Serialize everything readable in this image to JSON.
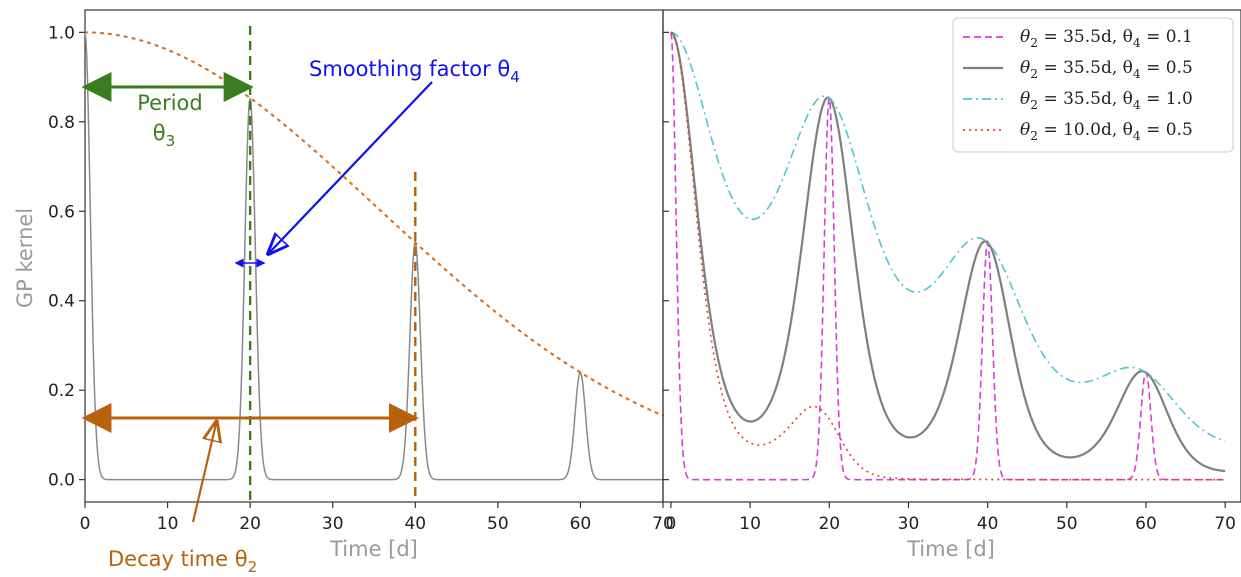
{
  "chart_data": [
    {
      "type": "line",
      "panel": "left",
      "ylabel": "GP kernel",
      "xlabel": "Time [d]",
      "xlim": [
        0,
        70
      ],
      "ylim": [
        -0.05,
        1.05
      ],
      "xticks": [
        "0",
        "10",
        "20",
        "30",
        "40",
        "50",
        "60",
        "70"
      ],
      "yticks": [
        "0.0",
        "0.2",
        "0.4",
        "0.6",
        "0.8",
        "1.0"
      ],
      "series": [
        {
          "style": "solid",
          "color": "#8a8a8a",
          "period": 20,
          "decay": 35.5,
          "smoothing": 0.1,
          "peaks": [
            {
              "x": 0,
              "y": 1.0
            },
            {
              "x": 20,
              "y": 0.85
            },
            {
              "x": 40,
              "y": 0.52
            },
            {
              "x": 60,
              "y": 0.23
            }
          ]
        },
        {
          "style": "dotted",
          "color": "#d4752a",
          "decay": 35.5,
          "x": [
            0,
            10,
            20,
            30,
            40,
            50,
            60,
            70
          ],
          "y": [
            1.0,
            0.96,
            0.85,
            0.7,
            0.52,
            0.37,
            0.23,
            0.14
          ]
        }
      ],
      "markers": {
        "period_line_x": 20,
        "decay_line_x": 40
      },
      "annotations": {
        "period": "Period",
        "period_symbol": "θ",
        "period_sub": "3",
        "smoothing": "Smoothing factor θ",
        "smoothing_sub": "4",
        "decay": "Decay time θ",
        "decay_sub": "2"
      },
      "colors": {
        "period": "#3a7d1e",
        "smoothing": "#1010f0",
        "decay": "#b8620e"
      }
    },
    {
      "type": "line",
      "panel": "right",
      "xlabel": "Time [d]",
      "xlim": [
        -1,
        72
      ],
      "ylim": [
        -0.05,
        1.05
      ],
      "xticks": [
        "0",
        "10",
        "20",
        "30",
        "40",
        "50",
        "60",
        "70"
      ],
      "legend_position": "top-right",
      "series": [
        {
          "name_p1": "θ",
          "name_s1": "2",
          "name_p2": " = 35.5d, θ",
          "name_s2": "4",
          "name_p3": " = 0.1",
          "theta2": 35.5,
          "theta4": 0.1,
          "style": "dashed",
          "color": "#d63fd6"
        },
        {
          "name_p1": "θ",
          "name_s1": "2",
          "name_p2": " = 35.5d, θ",
          "name_s2": "4",
          "name_p3": " = 0.5",
          "theta2": 35.5,
          "theta4": 0.5,
          "style": "solid",
          "color": "#7f7f7f"
        },
        {
          "name_p1": "θ",
          "name_s1": "2",
          "name_p2": " = 35.5d, θ",
          "name_s2": "4",
          "name_p3": " = 1.0",
          "theta2": 35.5,
          "theta4": 1.0,
          "style": "dashdot",
          "color": "#4fc6cf"
        },
        {
          "name_p1": "θ",
          "name_s1": "2",
          "name_p2": " = 10.0d, θ",
          "name_s2": "4",
          "name_p3": " = 0.5",
          "theta2": 10.0,
          "theta4": 0.5,
          "style": "dotted",
          "color": "#e0412a"
        }
      ],
      "period": 20
    }
  ]
}
